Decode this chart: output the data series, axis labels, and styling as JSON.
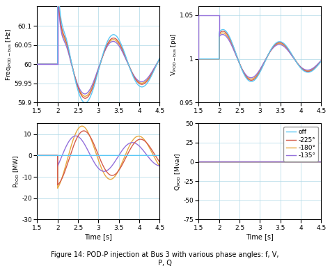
{
  "colors": {
    "off": "#5bc8f5",
    "225": "#d45b4a",
    "180": "#e8a83e",
    "135": "#9370db"
  },
  "legend_labels": [
    "off",
    "-225°",
    "-180°",
    "-135°"
  ],
  "time_xlim": [
    1.5,
    4.5
  ],
  "time_xticks": [
    1.5,
    2.0,
    2.5,
    3.0,
    3.5,
    4.0,
    4.5
  ],
  "freq_ylim": [
    59.9,
    60.15
  ],
  "freq_yticks": [
    59.9,
    59.95,
    60.0,
    60.05,
    60.1
  ],
  "volt_ylim": [
    0.95,
    1.06
  ],
  "volt_yticks": [
    0.95,
    1.0,
    1.05
  ],
  "ppod_ylim": [
    -30,
    15
  ],
  "ppod_yticks": [
    -30,
    -20,
    -10,
    0,
    10
  ],
  "qpod_ylim": [
    -75,
    50
  ],
  "qpod_yticks": [
    -75,
    -50,
    -25,
    0,
    25,
    50
  ],
  "ylabel_freq": "Freq$_{\\mathregular{POD-bus}}$ [Hz]",
  "ylabel_volt": "V$_{\\mathregular{POD-bus}}$ [pu]",
  "ylabel_ppod": "P$_{\\mathregular{POD}}$ [MW]",
  "ylabel_qpod": "Q$_{\\mathregular{POD}}$ [Mvar]",
  "xlabel": "Time [s]",
  "figure_caption": "Figure 14: POD-P injection at Bus 3 with various phase angles: f, V,\nP, Q",
  "lw": 1.0,
  "t_on": 2.0,
  "t_spike": 2.15,
  "freq_osc": 0.72,
  "freq_decay": 0.38,
  "volt_osc": 0.72,
  "volt_decay": 0.38,
  "ppod_osc": 0.72,
  "ppod_decay": 0.3
}
